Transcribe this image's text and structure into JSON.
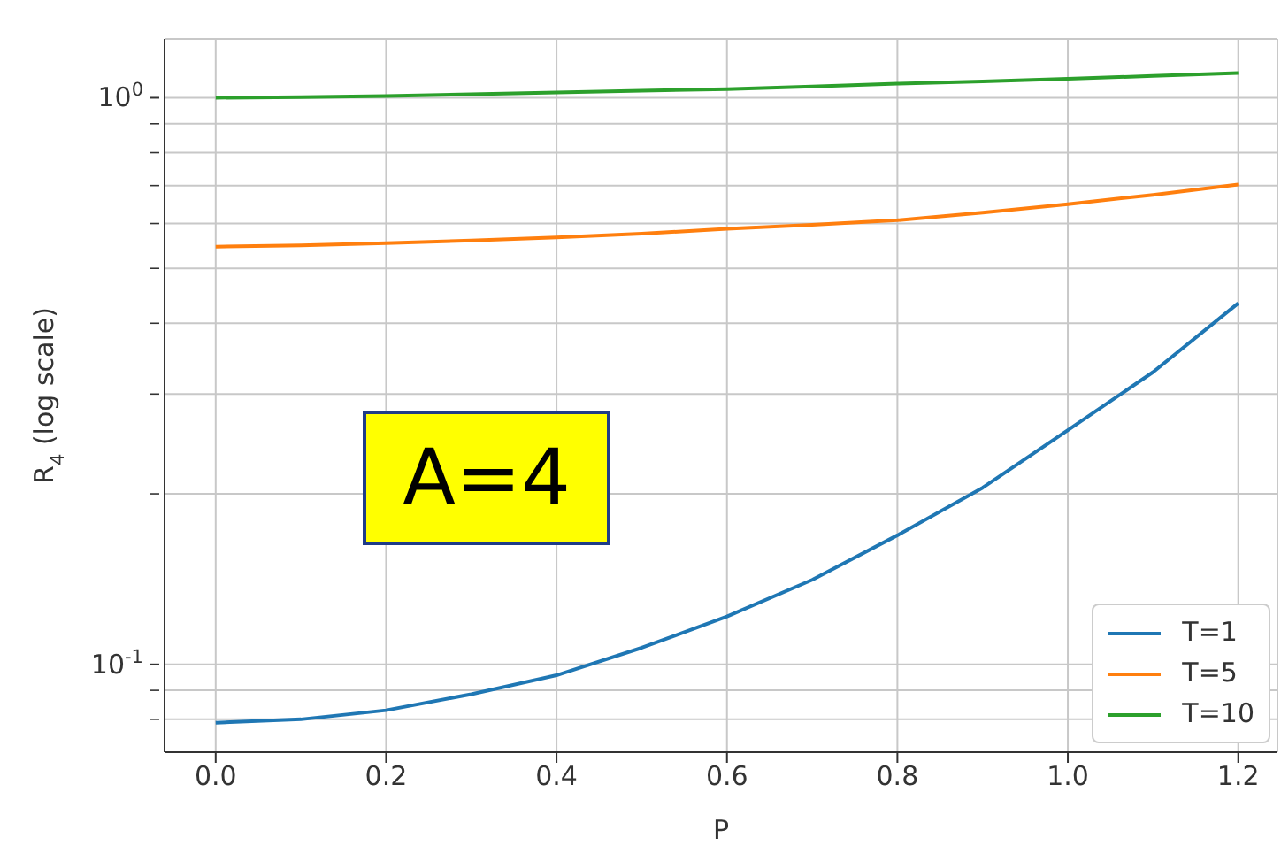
{
  "chart_data": {
    "type": "line",
    "xlabel": "P",
    "ylabel": "R$_{4}$ (log scale)",
    "log": "y",
    "grid": true,
    "legend": "bottom right",
    "annotations": [
      "A=4"
    ],
    "x": [
      0,
      0.1,
      0.2,
      0.3,
      0.4,
      0.5,
      0.6,
      0.7,
      0.8,
      0.9,
      1.0,
      1.1,
      1.2
    ],
    "xlim": [
      -0.06,
      1.246
    ],
    "xticks": [
      {
        "value": 0,
        "label": "0.0"
      },
      {
        "value": 0.2,
        "label": "0.2"
      },
      {
        "value": 0.4,
        "label": "0.4"
      },
      {
        "value": 0.6,
        "label": "0.6"
      },
      {
        "value": 0.8,
        "label": "0.8"
      },
      {
        "value": 1,
        "label": "1.0"
      },
      {
        "value": 1.2,
        "label": "1.2"
      }
    ],
    "ylim": [
      0.07,
      1.27
    ],
    "yticks": [
      {
        "value": 0.08,
        "label": null
      },
      {
        "value": 0.09,
        "label": null
      },
      {
        "value": 0.1,
        "label": "10$^{-1}$"
      },
      {
        "value": 0.2,
        "label": null
      },
      {
        "value": 0.3,
        "label": null
      },
      {
        "value": 0.4,
        "label": null
      },
      {
        "value": 0.5,
        "label": null
      },
      {
        "value": 0.6,
        "label": null
      },
      {
        "value": 0.7,
        "label": null
      },
      {
        "value": 0.8,
        "label": null
      },
      {
        "value": 0.9,
        "label": null
      },
      {
        "value": 1,
        "label": "10$^{0}$"
      }
    ],
    "series": [
      {
        "name": "T=1",
        "color": "#1f77b4",
        "values": [
          0.0789,
          0.08,
          0.083,
          0.0886,
          0.0957,
          0.107,
          0.1215,
          0.141,
          0.169,
          0.205,
          0.259,
          0.328,
          0.434
        ]
      },
      {
        "name": "T=5",
        "color": "#ff7f0e",
        "values": [
          0.546,
          0.549,
          0.554,
          0.56,
          0.567,
          0.576,
          0.587,
          0.597,
          0.608,
          0.627,
          0.649,
          0.674,
          0.703
        ]
      },
      {
        "name": "T=10",
        "color": "#2ca02c",
        "values": [
          1.0,
          1.003,
          1.007,
          1.014,
          1.022,
          1.029,
          1.036,
          1.047,
          1.059,
          1.069,
          1.08,
          1.093,
          1.106
        ]
      }
    ]
  }
}
